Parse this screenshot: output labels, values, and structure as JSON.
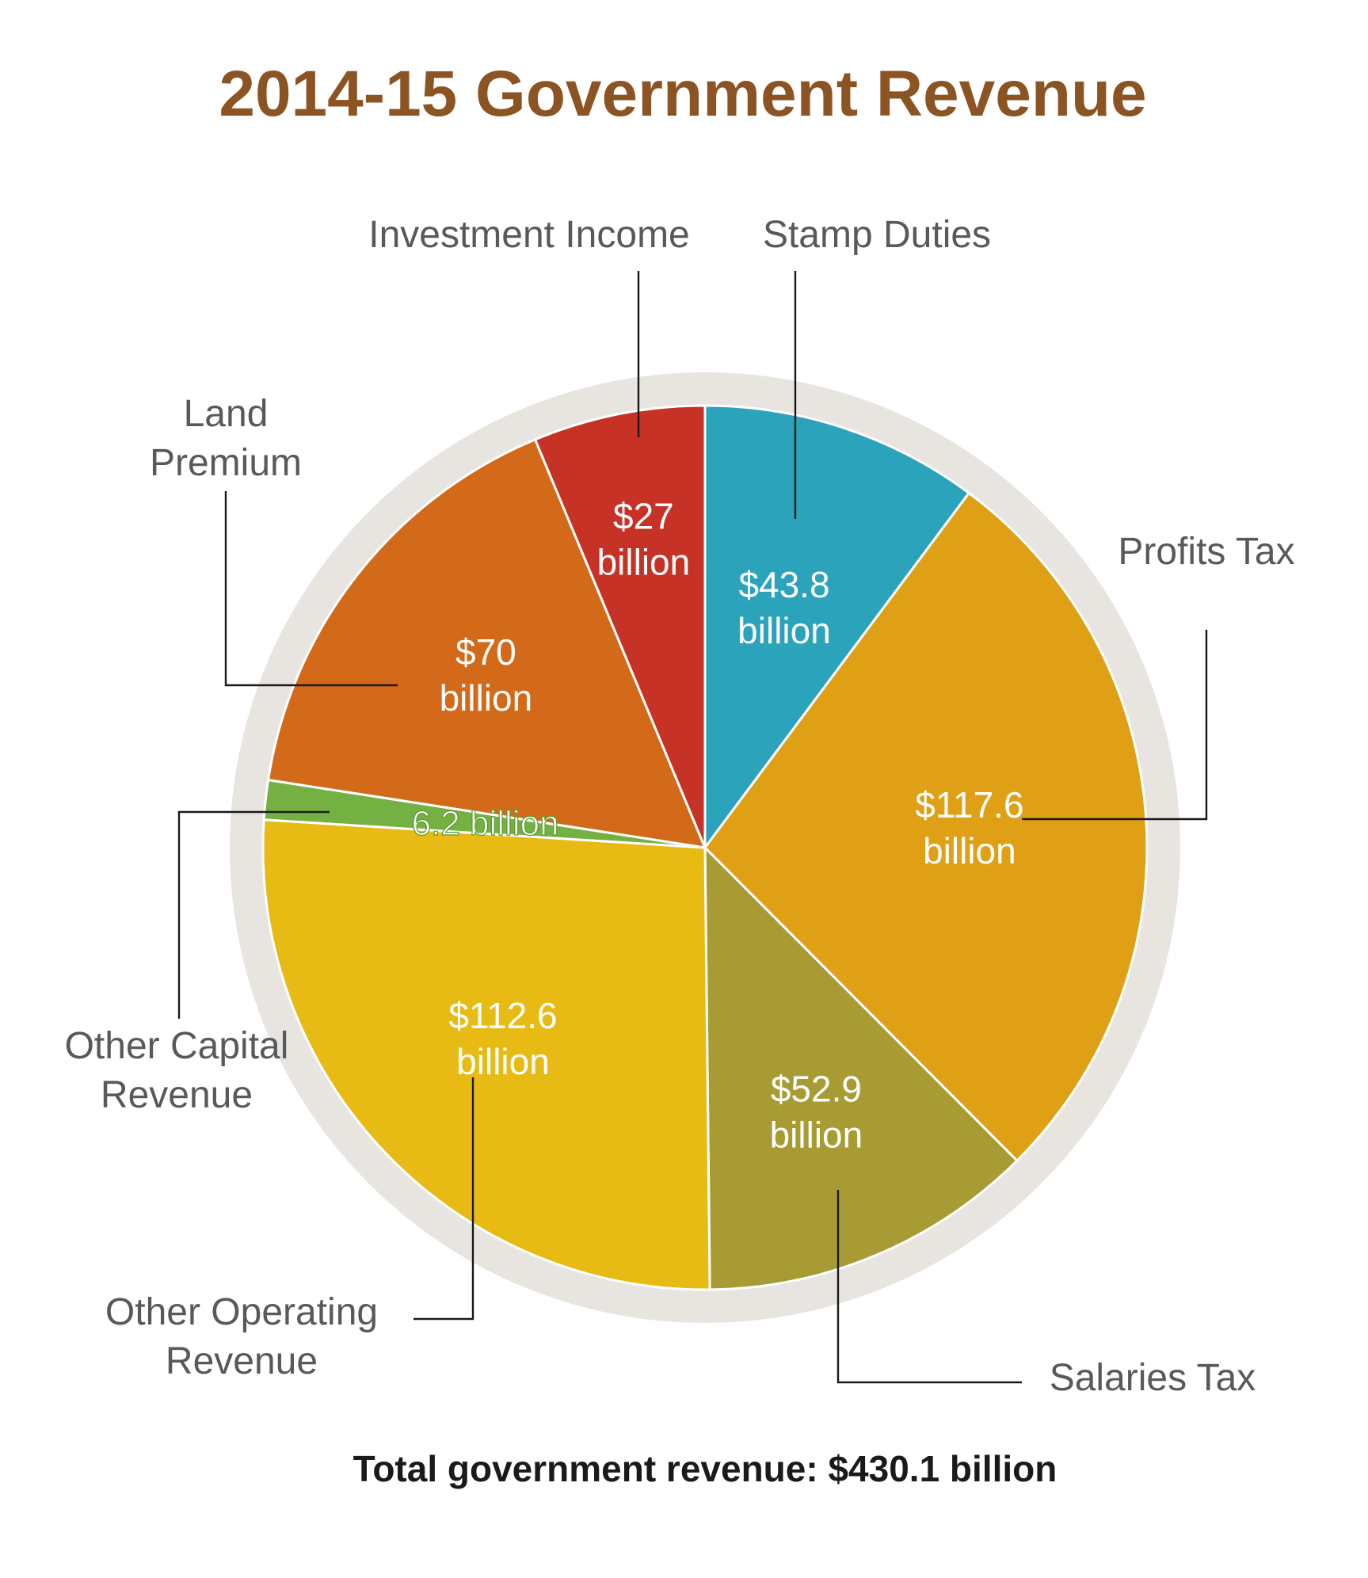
{
  "chart_data": {
    "type": "pie",
    "title": "2014-15 Government Revenue",
    "total_label": "Total government revenue: $430.1 billion",
    "total": 430.1,
    "unit": "billion",
    "slices": [
      {
        "name": "Stamp Duties",
        "value": 43.8,
        "value_lines": [
          "$43.8",
          "billion"
        ],
        "color": "#2ba3bb"
      },
      {
        "name": "Profits Tax",
        "value": 117.6,
        "value_lines": [
          "$117.6",
          "billion"
        ],
        "color": "#e0a016"
      },
      {
        "name": "Salaries Tax",
        "value": 52.9,
        "value_lines": [
          "$52.9",
          "billion"
        ],
        "color": "#a89b34"
      },
      {
        "name": "Other Operating Revenue",
        "value": 112.6,
        "value_lines": [
          "$112.6",
          "billion"
        ],
        "color": "#e8ba14"
      },
      {
        "name": "Other Capital Revenue",
        "value": 6.2,
        "value_lines": [
          "6.2 billion"
        ],
        "color": "#75b043"
      },
      {
        "name": "Land Premium",
        "value": 70,
        "value_lines": [
          "$70",
          "billion"
        ],
        "color": "#d26a19"
      },
      {
        "name": "Investment Income",
        "value": 27,
        "value_lines": [
          "$27",
          "billion"
        ],
        "color": "#c63226"
      }
    ],
    "label_lines": {
      "Stamp Duties": [
        "Stamp Duties"
      ],
      "Profits Tax": [
        "Profits Tax"
      ],
      "Salaries Tax": [
        "Salaries Tax"
      ],
      "Other Operating Revenue": [
        "Other Operating",
        "Revenue"
      ],
      "Other Capital Revenue": [
        "Other Capital",
        "Revenue"
      ],
      "Land Premium": [
        "Land",
        "Premium"
      ],
      "Investment Income": [
        "Investment Income"
      ]
    },
    "title_color": "#8c5423",
    "ring_color": "#e8e5e1"
  }
}
